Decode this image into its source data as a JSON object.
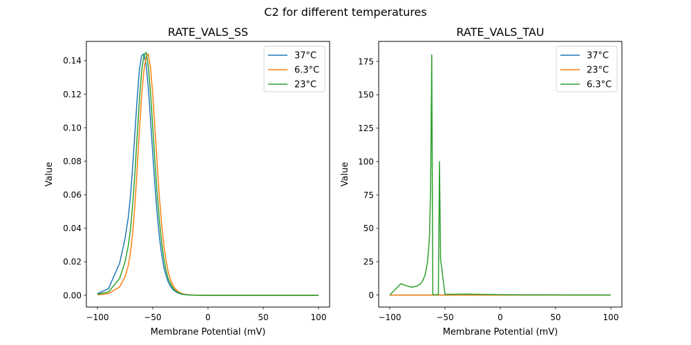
{
  "figure": {
    "suptitle": "C2 for different temperatures"
  },
  "chart_data": [
    {
      "type": "line",
      "title": "RATE_VALS_SS",
      "xlabel": "Membrane Potential (mV)",
      "ylabel": "Value",
      "xlim": [
        -110,
        110
      ],
      "ylim": [
        -0.007,
        0.1515
      ],
      "xticks": [
        -100,
        -50,
        0,
        50,
        100
      ],
      "xtick_labels": [
        "−100",
        "−50",
        "0",
        "50",
        "100"
      ],
      "yticks": [
        0.0,
        0.02,
        0.04,
        0.06,
        0.08,
        0.1,
        0.12,
        0.14
      ],
      "ytick_labels": [
        "0.00",
        "0.02",
        "0.04",
        "0.06",
        "0.08",
        "0.10",
        "0.12",
        "0.14"
      ],
      "grid": false,
      "legend_position": "top-right",
      "series": [
        {
          "name": "37°C",
          "color": "#1f77b4",
          "x": [
            -100,
            -90,
            -80,
            -75,
            -72,
            -70,
            -68,
            -66,
            -64,
            -62,
            -60,
            -58,
            -56,
            -54,
            -52,
            -50,
            -48,
            -46,
            -44,
            -42,
            -40,
            -38,
            -36,
            -34,
            -32,
            -30,
            -28,
            -26,
            -24,
            -22,
            -20,
            -15,
            -10,
            0,
            25,
            50,
            75,
            100
          ],
          "y": [
            0.001,
            0.004,
            0.019,
            0.034,
            0.047,
            0.06,
            0.078,
            0.098,
            0.118,
            0.135,
            0.143,
            0.144,
            0.138,
            0.124,
            0.105,
            0.085,
            0.066,
            0.049,
            0.035,
            0.025,
            0.017,
            0.012,
            0.008,
            0.0055,
            0.0037,
            0.0025,
            0.0017,
            0.0011,
            0.0007,
            0.0005,
            0.0003,
            0.0001,
            5e-05,
            0.0,
            0.0,
            0.0,
            0.0,
            0.0
          ]
        },
        {
          "name": "6.3°C",
          "color": "#ff7f0e",
          "x": [
            -100,
            -90,
            -80,
            -75,
            -72,
            -70,
            -68,
            -66,
            -64,
            -62,
            -60,
            -58,
            -56,
            -54,
            -52,
            -50,
            -48,
            -46,
            -44,
            -42,
            -40,
            -38,
            -36,
            -34,
            -32,
            -30,
            -28,
            -26,
            -24,
            -22,
            -20,
            -15,
            -10,
            0,
            25,
            50,
            75,
            100
          ],
          "y": [
            0.0003,
            0.001,
            0.005,
            0.011,
            0.018,
            0.026,
            0.038,
            0.055,
            0.076,
            0.099,
            0.119,
            0.134,
            0.142,
            0.144,
            0.136,
            0.12,
            0.1,
            0.079,
            0.059,
            0.043,
            0.03,
            0.021,
            0.014,
            0.0095,
            0.0063,
            0.0042,
            0.0028,
            0.0018,
            0.0012,
            0.0008,
            0.0005,
            0.0002,
            0.0001,
            0.0,
            0.0,
            0.0,
            0.0,
            0.0
          ]
        },
        {
          "name": "23°C",
          "color": "#2ca02c",
          "x": [
            -100,
            -90,
            -80,
            -75,
            -72,
            -70,
            -68,
            -66,
            -64,
            -62,
            -60,
            -58,
            -56,
            -54,
            -52,
            -50,
            -48,
            -46,
            -44,
            -42,
            -40,
            -38,
            -36,
            -34,
            -32,
            -30,
            -28,
            -26,
            -24,
            -22,
            -20,
            -15,
            -10,
            0,
            25,
            50,
            75,
            100
          ],
          "y": [
            0.0006,
            0.002,
            0.01,
            0.02,
            0.03,
            0.04,
            0.055,
            0.074,
            0.096,
            0.117,
            0.134,
            0.143,
            0.145,
            0.137,
            0.121,
            0.101,
            0.08,
            0.061,
            0.045,
            0.032,
            0.022,
            0.015,
            0.01,
            0.007,
            0.0047,
            0.0031,
            0.0021,
            0.0014,
            0.0009,
            0.0006,
            0.0004,
            0.0001,
            5e-05,
            0.0,
            0.0,
            0.0,
            0.0,
            0.0
          ]
        }
      ]
    },
    {
      "type": "line",
      "title": "RATE_VALS_TAU",
      "xlabel": "Membrane Potential (mV)",
      "ylabel": "Value",
      "xlim": [
        -110,
        110
      ],
      "ylim": [
        -9,
        190
      ],
      "xticks": [
        -100,
        -50,
        0,
        50,
        100
      ],
      "xtick_labels": [
        "−100",
        "−50",
        "0",
        "50",
        "100"
      ],
      "yticks": [
        0,
        25,
        50,
        75,
        100,
        125,
        150,
        175
      ],
      "ytick_labels": [
        "0",
        "25",
        "50",
        "75",
        "100",
        "125",
        "150",
        "175"
      ],
      "grid": false,
      "legend_position": "top-right",
      "series": [
        {
          "name": "37°C",
          "color": "#1f77b4",
          "x": [
            -100,
            -50,
            0,
            50,
            100
          ],
          "y": [
            0.0,
            0.0,
            0.0,
            0.0,
            0.0
          ]
        },
        {
          "name": "23°C",
          "color": "#ff7f0e",
          "x": [
            -100,
            -80,
            -60,
            -50,
            -40,
            -30,
            0,
            50,
            100
          ],
          "y": [
            0.0,
            0.0,
            0.0,
            0.0,
            0.0,
            0.0,
            0.0,
            0.0,
            0.0
          ]
        },
        {
          "name": "6.3°C",
          "color": "#2ca02c",
          "x": [
            -100,
            -90,
            -85,
            -80,
            -75,
            -72,
            -70,
            -68,
            -66,
            -65,
            -64,
            -63,
            -62,
            -61,
            -57,
            -56,
            -55,
            -54,
            -50,
            -40,
            -30,
            0,
            50,
            100
          ],
          "y": [
            0.0,
            8.5,
            7.0,
            5.8,
            6.8,
            8.5,
            11,
            15,
            24,
            32,
            45,
            80,
            180,
            0.3,
            0.3,
            0.3,
            100,
            27,
            0.5,
            0.6,
            0.7,
            0.3,
            0.1,
            0.0
          ]
        }
      ]
    }
  ]
}
